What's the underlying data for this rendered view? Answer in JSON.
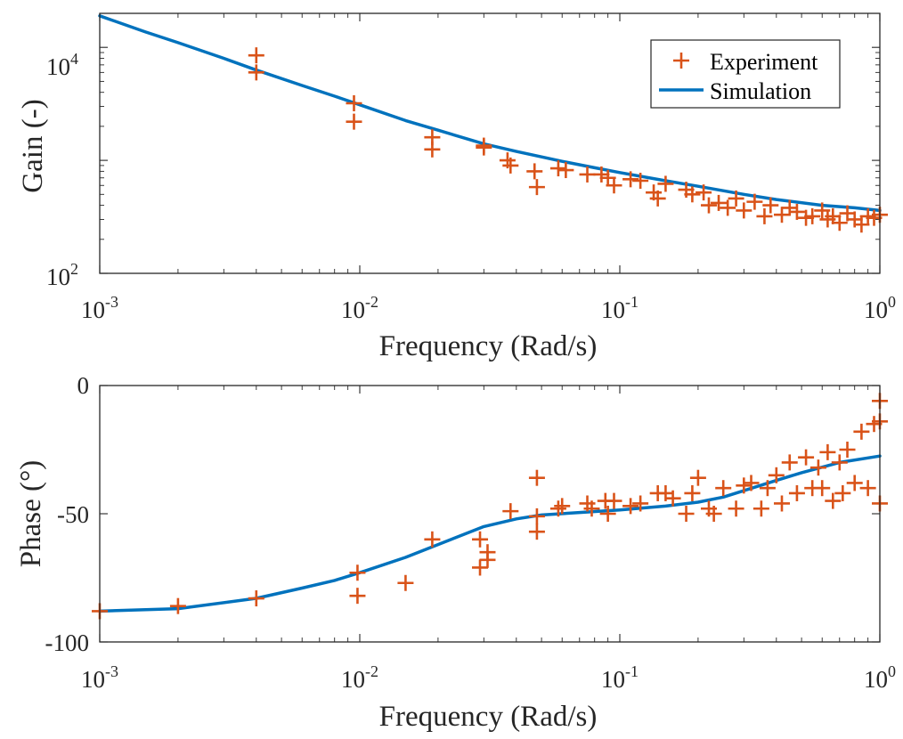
{
  "chart_data": [
    {
      "type": "line",
      "id": "gain",
      "title": "",
      "xlabel": "Frequency (Rad/s)",
      "ylabel": "Gain (-)",
      "xscale": "log",
      "yscale": "log",
      "xlim": [
        0.001,
        1
      ],
      "ylim": [
        100,
        20000
      ],
      "xticks": [
        {
          "value": 0.001,
          "base": "10",
          "exp": "-3"
        },
        {
          "value": 0.01,
          "base": "10",
          "exp": "-2"
        },
        {
          "value": 0.1,
          "base": "10",
          "exp": "-1"
        },
        {
          "value": 1,
          "base": "10",
          "exp": "0"
        }
      ],
      "yticks": [
        {
          "value": 100,
          "base": "10",
          "exp": "2"
        },
        {
          "value": 10000,
          "base": "10",
          "exp": "4"
        }
      ],
      "legend": {
        "position": "top-right",
        "entries": [
          "Experiment",
          "Simulation"
        ]
      },
      "series": [
        {
          "name": "Simulation",
          "kind": "line",
          "color": "#0072BD",
          "x": [
            0.001,
            0.0015,
            0.002,
            0.003,
            0.004,
            0.006,
            0.008,
            0.01,
            0.015,
            0.02,
            0.03,
            0.04,
            0.06,
            0.08,
            0.1,
            0.15,
            0.2,
            0.3,
            0.4,
            0.6,
            0.8,
            1.0
          ],
          "y": [
            19000,
            13700,
            11000,
            8000,
            6300,
            4600,
            3700,
            3100,
            2250,
            1850,
            1400,
            1200,
            980,
            860,
            780,
            660,
            590,
            500,
            450,
            400,
            380,
            360
          ]
        },
        {
          "name": "Experiment",
          "kind": "scatter",
          "color": "#D95319",
          "x": [
            0.004,
            0.004,
            0.0095,
            0.0095,
            0.019,
            0.019,
            0.03,
            0.03,
            0.037,
            0.038,
            0.047,
            0.048,
            0.058,
            0.062,
            0.075,
            0.085,
            0.09,
            0.095,
            0.11,
            0.12,
            0.135,
            0.14,
            0.15,
            0.18,
            0.19,
            0.21,
            0.22,
            0.24,
            0.26,
            0.28,
            0.3,
            0.33,
            0.36,
            0.38,
            0.42,
            0.45,
            0.48,
            0.52,
            0.55,
            0.6,
            0.63,
            0.66,
            0.7,
            0.75,
            0.8,
            0.85,
            0.9,
            0.95,
            1.0
          ],
          "y": [
            8500,
            6000,
            3200,
            2200,
            1600,
            1250,
            1350,
            1300,
            1000,
            900,
            800,
            580,
            850,
            820,
            750,
            750,
            700,
            600,
            680,
            660,
            520,
            460,
            620,
            550,
            500,
            520,
            400,
            420,
            380,
            460,
            360,
            430,
            320,
            400,
            330,
            380,
            350,
            310,
            320,
            360,
            300,
            320,
            280,
            340,
            300,
            270,
            320,
            310,
            330
          ]
        }
      ]
    },
    {
      "type": "line",
      "id": "phase",
      "title": "",
      "xlabel": "Frequency (Rad/s)",
      "ylabel": "Phase (°)",
      "xscale": "log",
      "yscale": "linear",
      "xlim": [
        0.001,
        1
      ],
      "ylim": [
        -100,
        0
      ],
      "xticks": [
        {
          "value": 0.001,
          "base": "10",
          "exp": "-3"
        },
        {
          "value": 0.01,
          "base": "10",
          "exp": "-2"
        },
        {
          "value": 0.1,
          "base": "10",
          "exp": "-1"
        },
        {
          "value": 1,
          "base": "10",
          "exp": "0"
        }
      ],
      "yticks": [
        {
          "value": 0,
          "label": "0"
        },
        {
          "value": -50,
          "label": "-50"
        },
        {
          "value": -100,
          "label": "-100"
        }
      ],
      "series": [
        {
          "name": "Simulation",
          "kind": "line",
          "color": "#0072BD",
          "x": [
            0.001,
            0.002,
            0.004,
            0.006,
            0.008,
            0.01,
            0.015,
            0.02,
            0.03,
            0.04,
            0.05,
            0.07,
            0.1,
            0.15,
            0.2,
            0.25,
            0.3,
            0.4,
            0.5,
            0.7,
            1.0
          ],
          "y": [
            -88,
            -87,
            -83,
            -79,
            -76,
            -73,
            -67,
            -62,
            -55,
            -52,
            -50.5,
            -49.5,
            -48.5,
            -47,
            -45.5,
            -43.5,
            -41,
            -37,
            -34,
            -30,
            -27.5
          ]
        },
        {
          "name": "Experiment",
          "kind": "scatter",
          "color": "#D95319",
          "x": [
            0.001,
            0.002,
            0.004,
            0.0098,
            0.0098,
            0.015,
            0.019,
            0.029,
            0.029,
            0.031,
            0.031,
            0.038,
            0.048,
            0.048,
            0.048,
            0.058,
            0.06,
            0.075,
            0.078,
            0.088,
            0.09,
            0.095,
            0.11,
            0.12,
            0.14,
            0.15,
            0.16,
            0.18,
            0.19,
            0.2,
            0.22,
            0.23,
            0.25,
            0.28,
            0.3,
            0.32,
            0.35,
            0.37,
            0.4,
            0.42,
            0.45,
            0.48,
            0.52,
            0.55,
            0.58,
            0.6,
            0.63,
            0.66,
            0.7,
            0.72,
            0.75,
            0.8,
            0.85,
            0.9,
            0.95,
            1.0,
            1.0,
            1.0
          ],
          "y": [
            -88,
            -86,
            -83,
            -73,
            -82,
            -77,
            -60,
            -60,
            -71,
            -65,
            -68,
            -49,
            -36,
            -51,
            -57,
            -48,
            -47,
            -46,
            -48,
            -45,
            -50,
            -45,
            -47,
            -46,
            -42,
            -42,
            -44,
            -50,
            -42,
            -36,
            -48,
            -50,
            -40,
            -48,
            -39,
            -38,
            -48,
            -40,
            -35,
            -46,
            -30,
            -42,
            -28,
            -40,
            -32,
            -40,
            -26,
            -45,
            -30,
            -42,
            -25,
            -38,
            -18,
            -40,
            -15,
            -6,
            -14,
            -46
          ]
        }
      ]
    }
  ]
}
